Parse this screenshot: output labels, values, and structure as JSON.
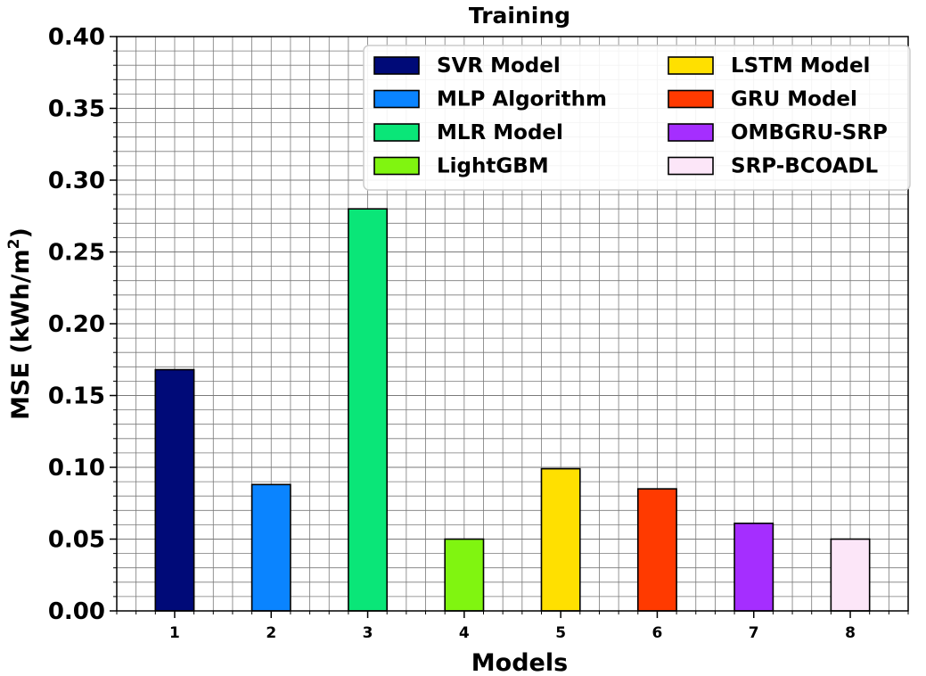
{
  "chart_data": {
    "type": "bar",
    "title": "Training",
    "xlabel": "Models",
    "ylabel": "MSE (kWh/m",
    "ylabel_superscript": "2",
    "ylabel_suffix": ")",
    "categories": [
      "1",
      "2",
      "3",
      "4",
      "5",
      "6",
      "7",
      "8"
    ],
    "series": [
      {
        "name": "SVR Model",
        "category": "1",
        "value": 0.168,
        "color": "#000a78"
      },
      {
        "name": "MLP Algorithm",
        "category": "2",
        "value": 0.088,
        "color": "#0a84ff"
      },
      {
        "name": "MLR Model",
        "category": "3",
        "value": 0.28,
        "color": "#0ae678"
      },
      {
        "name": "LightGBM",
        "category": "4",
        "value": 0.05,
        "color": "#80f510"
      },
      {
        "name": "LSTM Model",
        "category": "5",
        "value": 0.099,
        "color": "#ffe000"
      },
      {
        "name": "GRU Model",
        "category": "6",
        "value": 0.085,
        "color": "#ff3a00"
      },
      {
        "name": "OMBGRU-SRP",
        "category": "7",
        "value": 0.061,
        "color": "#a52eff"
      },
      {
        "name": "SRP-BCOADL",
        "category": "8",
        "value": 0.05,
        "color": "#fce6f8"
      }
    ],
    "ylim": [
      0,
      0.4
    ],
    "yticks": [
      "0.00",
      "0.05",
      "0.10",
      "0.15",
      "0.20",
      "0.25",
      "0.30",
      "0.35",
      "0.40"
    ],
    "grid": true,
    "legend_position": "top-right",
    "legend_columns": 2
  }
}
